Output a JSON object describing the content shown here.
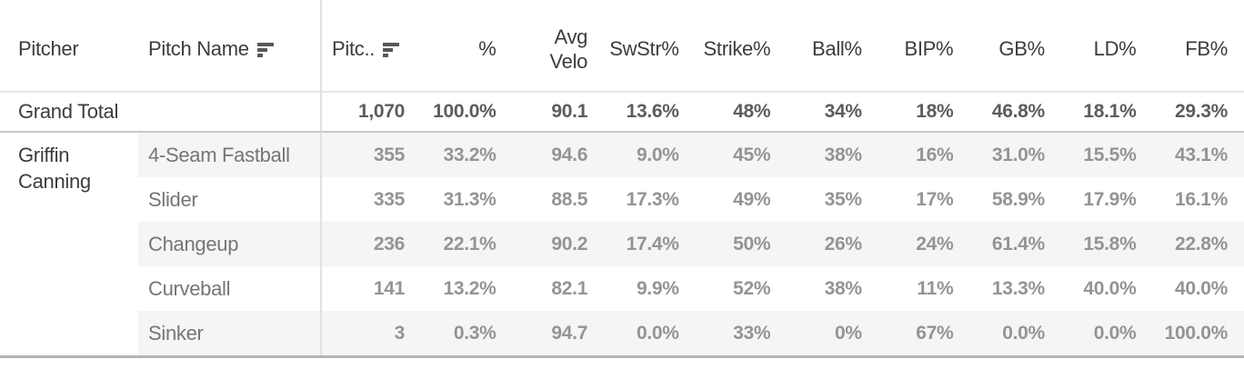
{
  "colors": {
    "band": "#f5f5f5",
    "divider": "#e1e1e1",
    "border_light": "#e4e4e4",
    "border_mid": "#c9c9c9",
    "border_strong": "#b4b4b4",
    "header_text": "#3c3c3c",
    "row_label_text": "#757575",
    "value_text": "#949494",
    "total_value_text": "#5c5c5c"
  },
  "ui": {
    "header": {
      "pitcher": "Pitcher",
      "pitch_name": "Pitch Name",
      "pitches_truncated": "Pitc..",
      "metrics": [
        "%",
        "Avg\nVelo",
        "SwStr%",
        "Strike%",
        "Ball%",
        "BIP%",
        "GB%",
        "LD%",
        "FB%"
      ],
      "sort_icon": "sort-descending-bars"
    },
    "pitcher_display": "Griffin\nCanning"
  },
  "chart_data": {
    "type": "table",
    "title": "",
    "columns": [
      "Pitcher",
      "Pitch Name",
      "Pitches",
      "%",
      "Avg Velo",
      "SwStr%",
      "Strike%",
      "Ball%",
      "BIP%",
      "GB%",
      "LD%",
      "FB%"
    ],
    "rows": [
      [
        "Grand Total",
        "",
        "1,070",
        "100.0%",
        "90.1",
        "13.6%",
        "48%",
        "34%",
        "18%",
        "46.8%",
        "18.1%",
        "29.3%"
      ],
      [
        "Griffin Canning",
        "4-Seam Fastball",
        "355",
        "33.2%",
        "94.6",
        "9.0%",
        "45%",
        "38%",
        "16%",
        "31.0%",
        "15.5%",
        "43.1%"
      ],
      [
        "Griffin Canning",
        "Slider",
        "335",
        "31.3%",
        "88.5",
        "17.3%",
        "49%",
        "35%",
        "17%",
        "58.9%",
        "17.9%",
        "16.1%"
      ],
      [
        "Griffin Canning",
        "Changeup",
        "236",
        "22.1%",
        "90.2",
        "17.4%",
        "50%",
        "26%",
        "24%",
        "61.4%",
        "15.8%",
        "22.8%"
      ],
      [
        "Griffin Canning",
        "Curveball",
        "141",
        "13.2%",
        "82.1",
        "9.9%",
        "52%",
        "38%",
        "11%",
        "13.3%",
        "40.0%",
        "40.0%"
      ],
      [
        "Griffin Canning",
        "Sinker",
        "3",
        "0.3%",
        "94.7",
        "0.0%",
        "33%",
        "0%",
        "67%",
        "0.0%",
        "0.0%",
        "100.0%"
      ]
    ],
    "layout": {
      "banded_rows": true,
      "grand_total_position": "top",
      "numeric_alignment": "right"
    }
  }
}
